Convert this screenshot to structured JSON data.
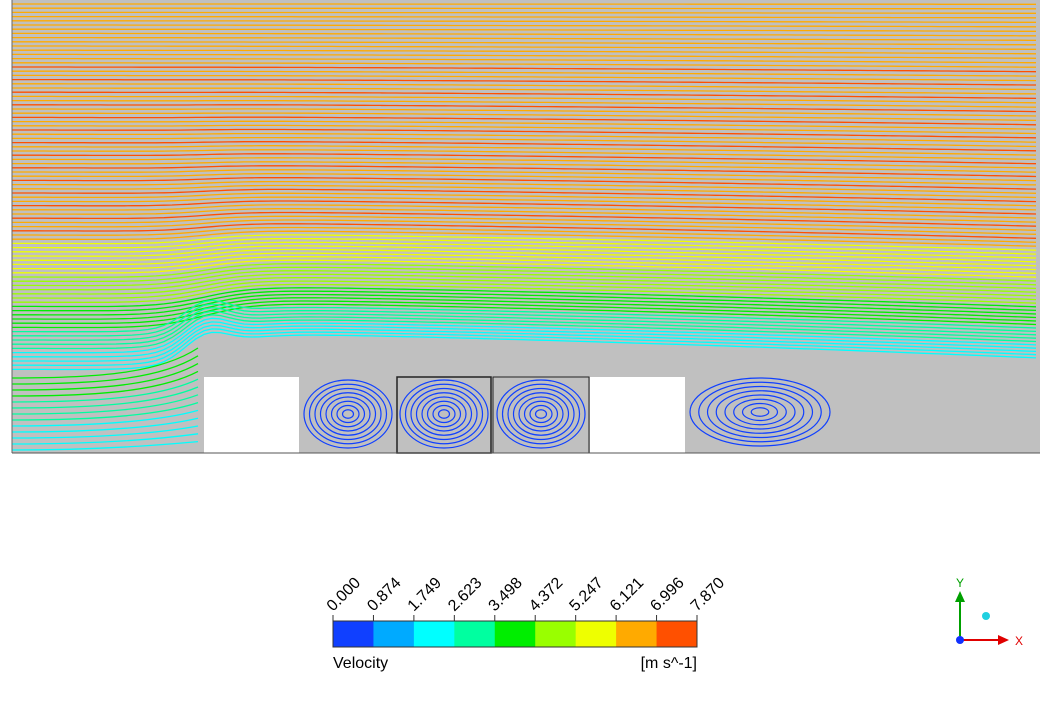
{
  "legend": {
    "title": "Velocity",
    "unit": "[m s^-1]",
    "ticks": [
      "0.000",
      "0.874",
      "1.749",
      "2.623",
      "3.498",
      "4.372",
      "5.247",
      "6.121",
      "6.996",
      "7.870"
    ],
    "colors": [
      "#1040ff",
      "#00aaff",
      "#00ffff",
      "#00ffa0",
      "#00ee00",
      "#99ff00",
      "#eeff00",
      "#ffaa00",
      "#ff5000"
    ]
  },
  "axes": {
    "y_label": "Y",
    "x_label": "X"
  }
}
